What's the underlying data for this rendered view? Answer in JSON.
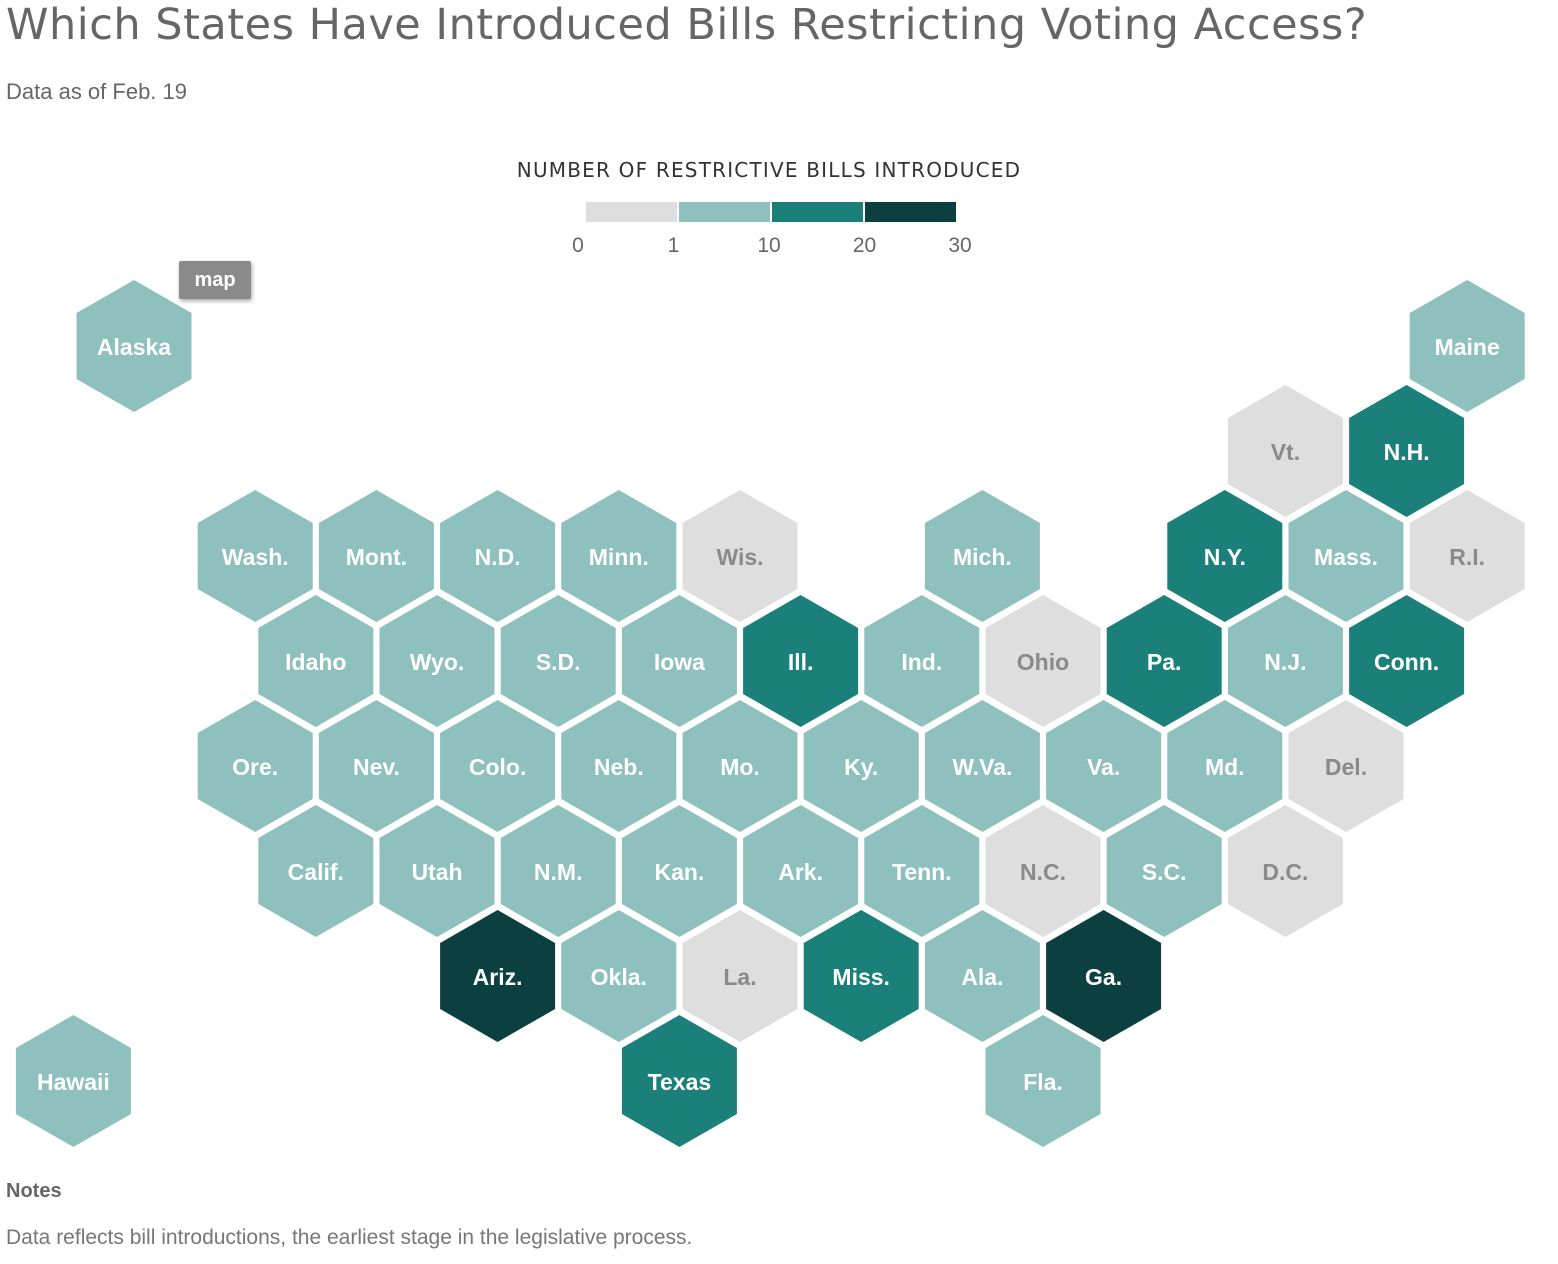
{
  "title": "Which States Have Introduced Bills Restricting Voting Access?",
  "subtitle": "Data as of Feb. 19",
  "legend": {
    "title": "NUMBER OF RESTRICTIVE BILLS INTRODUCED",
    "ticks": [
      "0",
      "1",
      "10",
      "20",
      "30"
    ],
    "bins": [
      {
        "min": 0,
        "max": 1,
        "color": "#dedede",
        "label_color": "#8a8a8a"
      },
      {
        "min": 1,
        "max": 10,
        "color": "#8ec0bd",
        "label_color": "#ffffff"
      },
      {
        "min": 10,
        "max": 20,
        "color": "#1b8079",
        "label_color": "#ffffff"
      },
      {
        "min": 20,
        "max": 30,
        "color": "#0c3f40",
        "label_color": "#ffffff"
      }
    ]
  },
  "map_button": "map",
  "notes": {
    "heading": "Notes",
    "text": "Data reflects bill introductions, the earliest stage in the legislative process."
  },
  "chart_data": {
    "type": "hex-tile-map",
    "title": "Which States Have Introduced Bills Restricting Voting Access?",
    "states": [
      {
        "label": "Alaska",
        "row": 0,
        "col": 0,
        "bin": 1
      },
      {
        "label": "Maine",
        "row": 0,
        "col": 11,
        "bin": 1
      },
      {
        "label": "Vt.",
        "row": 1,
        "col": 9.5,
        "bin": 0
      },
      {
        "label": "N.H.",
        "row": 1,
        "col": 10.5,
        "bin": 2
      },
      {
        "label": "Wash.",
        "row": 2,
        "col": 1,
        "bin": 1
      },
      {
        "label": "Mont.",
        "row": 2,
        "col": 2,
        "bin": 1
      },
      {
        "label": "N.D.",
        "row": 2,
        "col": 3,
        "bin": 1
      },
      {
        "label": "Minn.",
        "row": 2,
        "col": 4,
        "bin": 1
      },
      {
        "label": "Wis.",
        "row": 2,
        "col": 5,
        "bin": 0
      },
      {
        "label": "Mich.",
        "row": 2,
        "col": 7,
        "bin": 1
      },
      {
        "label": "N.Y.",
        "row": 2,
        "col": 9,
        "bin": 2
      },
      {
        "label": "Mass.",
        "row": 2,
        "col": 10,
        "bin": 1
      },
      {
        "label": "R.I.",
        "row": 2,
        "col": 11,
        "bin": 0
      },
      {
        "label": "Idaho",
        "row": 3,
        "col": 1.5,
        "bin": 1
      },
      {
        "label": "Wyo.",
        "row": 3,
        "col": 2.5,
        "bin": 1
      },
      {
        "label": "S.D.",
        "row": 3,
        "col": 3.5,
        "bin": 1
      },
      {
        "label": "Iowa",
        "row": 3,
        "col": 4.5,
        "bin": 1
      },
      {
        "label": "Ill.",
        "row": 3,
        "col": 5.5,
        "bin": 2
      },
      {
        "label": "Ind.",
        "row": 3,
        "col": 6.5,
        "bin": 1
      },
      {
        "label": "Ohio",
        "row": 3,
        "col": 7.5,
        "bin": 0
      },
      {
        "label": "Pa.",
        "row": 3,
        "col": 8.5,
        "bin": 2
      },
      {
        "label": "N.J.",
        "row": 3,
        "col": 9.5,
        "bin": 1
      },
      {
        "label": "Conn.",
        "row": 3,
        "col": 10.5,
        "bin": 2
      },
      {
        "label": "Ore.",
        "row": 4,
        "col": 1,
        "bin": 1
      },
      {
        "label": "Nev.",
        "row": 4,
        "col": 2,
        "bin": 1
      },
      {
        "label": "Colo.",
        "row": 4,
        "col": 3,
        "bin": 1
      },
      {
        "label": "Neb.",
        "row": 4,
        "col": 4,
        "bin": 1
      },
      {
        "label": "Mo.",
        "row": 4,
        "col": 5,
        "bin": 1
      },
      {
        "label": "Ky.",
        "row": 4,
        "col": 6,
        "bin": 1
      },
      {
        "label": "W.Va.",
        "row": 4,
        "col": 7,
        "bin": 1
      },
      {
        "label": "Va.",
        "row": 4,
        "col": 8,
        "bin": 1
      },
      {
        "label": "Md.",
        "row": 4,
        "col": 9,
        "bin": 1
      },
      {
        "label": "Del.",
        "row": 4,
        "col": 10,
        "bin": 0
      },
      {
        "label": "Calif.",
        "row": 5,
        "col": 1.5,
        "bin": 1
      },
      {
        "label": "Utah",
        "row": 5,
        "col": 2.5,
        "bin": 1
      },
      {
        "label": "N.M.",
        "row": 5,
        "col": 3.5,
        "bin": 1
      },
      {
        "label": "Kan.",
        "row": 5,
        "col": 4.5,
        "bin": 1
      },
      {
        "label": "Ark.",
        "row": 5,
        "col": 5.5,
        "bin": 1
      },
      {
        "label": "Tenn.",
        "row": 5,
        "col": 6.5,
        "bin": 1
      },
      {
        "label": "N.C.",
        "row": 5,
        "col": 7.5,
        "bin": 0
      },
      {
        "label": "S.C.",
        "row": 5,
        "col": 8.5,
        "bin": 1
      },
      {
        "label": "D.C.",
        "row": 5,
        "col": 9.5,
        "bin": 0
      },
      {
        "label": "Ariz.",
        "row": 6,
        "col": 3,
        "bin": 3
      },
      {
        "label": "Okla.",
        "row": 6,
        "col": 4,
        "bin": 1
      },
      {
        "label": "La.",
        "row": 6,
        "col": 5,
        "bin": 0
      },
      {
        "label": "Miss.",
        "row": 6,
        "col": 6,
        "bin": 2
      },
      {
        "label": "Ala.",
        "row": 6,
        "col": 7,
        "bin": 1
      },
      {
        "label": "Ga.",
        "row": 6,
        "col": 8,
        "bin": 3
      },
      {
        "label": "Hawaii",
        "row": 7,
        "col": -0.5,
        "bin": 1
      },
      {
        "label": "Texas",
        "row": 7,
        "col": 4.5,
        "bin": 2
      },
      {
        "label": "Fla.",
        "row": 7,
        "col": 7.5,
        "bin": 1
      }
    ]
  }
}
